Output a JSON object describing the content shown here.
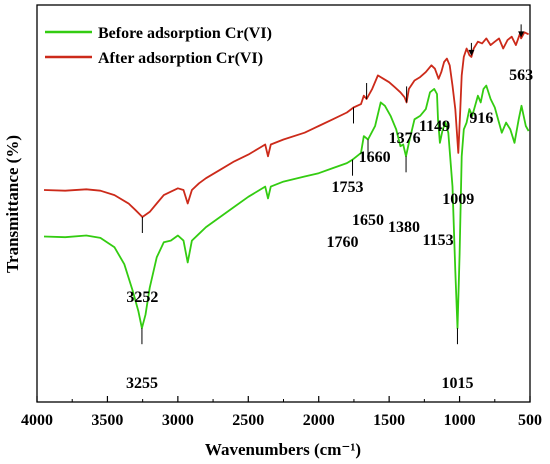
{
  "chart_data": {
    "type": "line",
    "title": "",
    "xlabel": "Wavenumbers (cm⁻¹)",
    "ylabel": "Transmittance (%)",
    "xlim": [
      4000,
      500
    ],
    "x_reversed": true,
    "ylim": [
      0,
      100
    ],
    "grid": false,
    "legend_position": "top-left",
    "x_ticks": [
      {
        "value": 4000,
        "label": "4000"
      },
      {
        "value": 3500,
        "label": "3500"
      },
      {
        "value": 3000,
        "label": "3000"
      },
      {
        "value": 2500,
        "label": "2500"
      },
      {
        "value": 2000,
        "label": "2000"
      },
      {
        "value": 1500,
        "label": "1500"
      },
      {
        "value": 1000,
        "label": "1000"
      },
      {
        "value": 500,
        "label": "500"
      }
    ],
    "series": [
      {
        "name": "Before adsorption Cr(VI)",
        "color": "#33cc11",
        "points": [
          [
            3950,
            40.2
          ],
          [
            3800,
            40.0
          ],
          [
            3650,
            40.5
          ],
          [
            3550,
            39.8
          ],
          [
            3450,
            37.0
          ],
          [
            3380,
            32.0
          ],
          [
            3320,
            24.0
          ],
          [
            3280,
            18.0
          ],
          [
            3255,
            13.0
          ],
          [
            3230,
            17.0
          ],
          [
            3200,
            25.0
          ],
          [
            3150,
            34.0
          ],
          [
            3100,
            38.5
          ],
          [
            3050,
            39.0
          ],
          [
            3000,
            40.5
          ],
          [
            2960,
            39.0
          ],
          [
            2930,
            32.5
          ],
          [
            2900,
            39.0
          ],
          [
            2850,
            41.0
          ],
          [
            2800,
            43.0
          ],
          [
            2700,
            46.0
          ],
          [
            2600,
            49.0
          ],
          [
            2500,
            52.0
          ],
          [
            2420,
            54.0
          ],
          [
            2380,
            55.0
          ],
          [
            2360,
            51.5
          ],
          [
            2340,
            55.0
          ],
          [
            2250,
            56.5
          ],
          [
            2100,
            58.0
          ],
          [
            2000,
            59.0
          ],
          [
            1900,
            60.5
          ],
          [
            1800,
            62.0
          ],
          [
            1760,
            63.0
          ],
          [
            1700,
            65.0
          ],
          [
            1680,
            70.0
          ],
          [
            1650,
            69.0
          ],
          [
            1600,
            73.0
          ],
          [
            1560,
            80.0
          ],
          [
            1530,
            79.0
          ],
          [
            1490,
            76.0
          ],
          [
            1450,
            72.0
          ],
          [
            1420,
            67.0
          ],
          [
            1400,
            67.5
          ],
          [
            1380,
            64.0
          ],
          [
            1360,
            68.0
          ],
          [
            1320,
            75.0
          ],
          [
            1280,
            76.0
          ],
          [
            1240,
            78.0
          ],
          [
            1210,
            83.0
          ],
          [
            1180,
            84.0
          ],
          [
            1160,
            82.5
          ],
          [
            1153,
            75.0
          ],
          [
            1140,
            68.0
          ],
          [
            1120,
            72.0
          ],
          [
            1100,
            74.0
          ],
          [
            1080,
            71.0
          ],
          [
            1050,
            55.0
          ],
          [
            1030,
            30.0
          ],
          [
            1015,
            13.0
          ],
          [
            1000,
            35.0
          ],
          [
            985,
            64.0
          ],
          [
            970,
            72.0
          ],
          [
            950,
            74.0
          ],
          [
            930,
            78.0
          ],
          [
            910,
            76.0
          ],
          [
            890,
            79.0
          ],
          [
            870,
            82.0
          ],
          [
            850,
            80.0
          ],
          [
            830,
            84.0
          ],
          [
            810,
            85.0
          ],
          [
            780,
            81.0
          ],
          [
            750,
            78.5
          ],
          [
            720,
            74.0
          ],
          [
            700,
            71.0
          ],
          [
            670,
            74.0
          ],
          [
            640,
            72.0
          ],
          [
            610,
            68.0
          ],
          [
            580,
            75.0
          ],
          [
            560,
            79.0
          ],
          [
            530,
            73.0
          ],
          [
            510,
            71.5
          ]
        ]
      },
      {
        "name": "After adsorption Cr(VI)",
        "color": "#cc2a1a",
        "points": [
          [
            3950,
            54.0
          ],
          [
            3800,
            53.8
          ],
          [
            3650,
            54.2
          ],
          [
            3550,
            53.8
          ],
          [
            3450,
            52.5
          ],
          [
            3350,
            50.0
          ],
          [
            3300,
            48.0
          ],
          [
            3252,
            46.0
          ],
          [
            3200,
            47.5
          ],
          [
            3150,
            50.0
          ],
          [
            3100,
            52.5
          ],
          [
            3050,
            53.5
          ],
          [
            3000,
            54.5
          ],
          [
            2960,
            54.0
          ],
          [
            2930,
            50.0
          ],
          [
            2900,
            54.0
          ],
          [
            2850,
            56.0
          ],
          [
            2800,
            57.5
          ],
          [
            2700,
            60.0
          ],
          [
            2600,
            62.5
          ],
          [
            2500,
            64.5
          ],
          [
            2420,
            66.5
          ],
          [
            2380,
            67.5
          ],
          [
            2360,
            64.0
          ],
          [
            2340,
            67.5
          ],
          [
            2250,
            69.0
          ],
          [
            2100,
            71.0
          ],
          [
            2000,
            73.0
          ],
          [
            1900,
            75.0
          ],
          [
            1800,
            77.0
          ],
          [
            1753,
            78.5
          ],
          [
            1700,
            79.5
          ],
          [
            1680,
            82.0
          ],
          [
            1660,
            81.0
          ],
          [
            1620,
            84.0
          ],
          [
            1580,
            88.0
          ],
          [
            1540,
            87.0
          ],
          [
            1500,
            86.0
          ],
          [
            1460,
            84.5
          ],
          [
            1420,
            83.0
          ],
          [
            1390,
            81.5
          ],
          [
            1376,
            80.0
          ],
          [
            1360,
            84.0
          ],
          [
            1320,
            86.5
          ],
          [
            1280,
            87.5
          ],
          [
            1240,
            89.0
          ],
          [
            1200,
            91.0
          ],
          [
            1175,
            90.0
          ],
          [
            1149,
            87.0
          ],
          [
            1130,
            89.0
          ],
          [
            1110,
            92.0
          ],
          [
            1090,
            93.0
          ],
          [
            1070,
            91.0
          ],
          [
            1050,
            85.0
          ],
          [
            1030,
            78.0
          ],
          [
            1009,
            65.0
          ],
          [
            995,
            78.0
          ],
          [
            985,
            88.0
          ],
          [
            970,
            93.5
          ],
          [
            950,
            96.0
          ],
          [
            930,
            94.0
          ],
          [
            916,
            93.5
          ],
          [
            900,
            96.0
          ],
          [
            870,
            98.0
          ],
          [
            840,
            97.5
          ],
          [
            810,
            99.0
          ],
          [
            780,
            97.0
          ],
          [
            750,
            98.0
          ],
          [
            720,
            99.0
          ],
          [
            690,
            96.0
          ],
          [
            660,
            98.5
          ],
          [
            630,
            99.5
          ],
          [
            600,
            97.0
          ],
          [
            570,
            100.5
          ],
          [
            563,
            99.0
          ],
          [
            540,
            100.8
          ],
          [
            510,
            100.2
          ]
        ]
      }
    ],
    "annotations": [
      {
        "label": "563",
        "x": 563,
        "series": 1
      },
      {
        "label": "916",
        "x": 916,
        "series": 1
      },
      {
        "label": "1149",
        "x": 1149,
        "series": 1
      },
      {
        "label": "1376",
        "x": 1376,
        "series": 1
      },
      {
        "label": "1660",
        "x": 1660,
        "series": 1
      },
      {
        "label": "1753",
        "x": 1753,
        "series": 1
      },
      {
        "label": "1009",
        "x": 1009,
        "series": 1
      },
      {
        "label": "3252",
        "x": 3252,
        "series": 1
      },
      {
        "label": "1760",
        "x": 1760,
        "series": 0
      },
      {
        "label": "1650",
        "x": 1650,
        "series": 0
      },
      {
        "label": "1380",
        "x": 1380,
        "series": 0
      },
      {
        "label": "1153",
        "x": 1153,
        "series": 0
      },
      {
        "label": "1015",
        "x": 1015,
        "series": 0
      },
      {
        "label": "3255",
        "x": 3255,
        "series": 0
      }
    ]
  }
}
